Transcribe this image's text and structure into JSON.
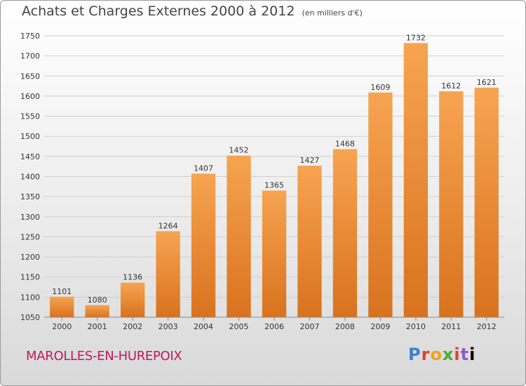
{
  "header": {
    "title": "Achats et Charges Externes 2000 à 2012",
    "unit": "(en milliers d'€)"
  },
  "footer": {
    "commune": "MAROLLES-EN-HUREPOIX",
    "logo_text": "Proxiti"
  },
  "colors": {
    "bar_top": "#f7a451",
    "bar_bottom": "#d9721e",
    "grid": "#d0d0d0",
    "axis_text": "#333333",
    "commune": "#c2185b"
  },
  "chart_data": {
    "type": "bar",
    "title": "Achats et Charges Externes 2000 à 2012",
    "subtitle": "(en milliers d'€)",
    "xlabel": "",
    "ylabel": "",
    "categories": [
      "2000",
      "2001",
      "2002",
      "2003",
      "2004",
      "2005",
      "2006",
      "2007",
      "2008",
      "2009",
      "2010",
      "2011",
      "2012"
    ],
    "values": [
      1101,
      1080,
      1136,
      1264,
      1407,
      1452,
      1365,
      1427,
      1468,
      1609,
      1732,
      1612,
      1621
    ],
    "ylim": [
      1050,
      1750
    ],
    "yticks": [
      1050,
      1100,
      1150,
      1200,
      1250,
      1300,
      1350,
      1400,
      1450,
      1500,
      1550,
      1600,
      1650,
      1700,
      1750
    ],
    "grid": true,
    "data_labels": true
  }
}
